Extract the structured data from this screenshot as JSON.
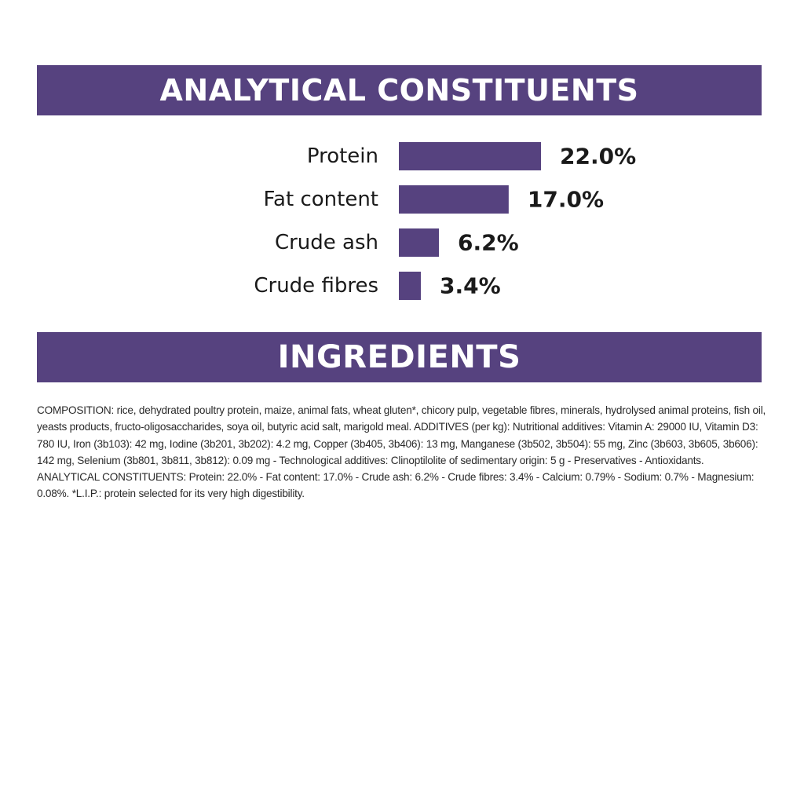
{
  "colors": {
    "accent": "#56427f",
    "text": "#1a1a1a",
    "background": "#ffffff"
  },
  "analytical": {
    "title": "ANALYTICAL CONSTITUENTS"
  },
  "chart_data": {
    "type": "bar",
    "orientation": "horizontal",
    "categories": [
      "Protein",
      "Fat content",
      "Crude ash",
      "Crude fibres"
    ],
    "values": [
      22.0,
      17.0,
      6.2,
      3.4
    ],
    "value_labels": [
      "22.0%",
      "17.0%",
      "6.2%",
      "3.4%"
    ],
    "unit": "%",
    "xlim": [
      0,
      22.0
    ],
    "grid": false,
    "legend": "none"
  },
  "ingredients": {
    "title": "INGREDIENTS",
    "composition": "COMPOSITION: rice, dehydrated poultry protein, maize, animal fats, wheat gluten*, chicory pulp, vegetable fibres, minerals, hydrolysed animal proteins, fish oil, yeasts products, fructo-oligosaccharides, soya oil, butyric acid salt, marigold meal. ADDITIVES (per kg): Nutritional additives: Vitamin A: 29000 IU, Vitamin D3: 780 IU, Iron (3b103): 42 mg, Iodine (3b201, 3b202): 4.2 mg, Copper (3b405, 3b406): 13 mg, Manganese (3b502, 3b504): 55 mg, Zinc (3b603, 3b605, 3b606): 142 mg, Selenium (3b801, 3b811, 3b812): 0.09 mg - Technological additives: Clinoptilolite of sedimentary origin: 5 g - Preservatives - Antioxidants. ANALYTICAL CONSTITUENTS: Protein: 22.0% - Fat content: 17.0% - Crude ash: 6.2% - Crude fibres: 3.4% - Calcium: 0.79% - Sodium: 0.7% - Magnesium: 0.08%. *L.I.P.: protein selected for its very high digestibility."
  }
}
